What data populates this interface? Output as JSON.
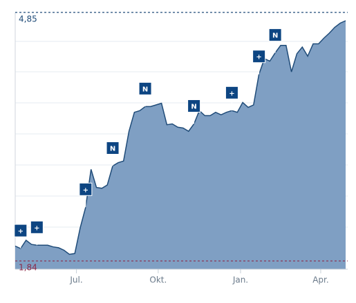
{
  "chart_data": {
    "type": "area",
    "x": [
      0,
      1,
      2,
      3,
      4,
      5,
      6,
      7,
      8,
      9,
      10,
      11,
      12,
      13,
      14,
      15,
      16,
      17,
      18,
      19,
      20,
      21,
      22,
      23,
      24,
      25,
      26,
      27,
      28,
      29,
      30,
      31,
      32,
      33,
      34,
      35,
      36,
      37,
      38,
      39,
      40,
      41,
      42,
      43,
      44,
      45,
      46,
      47,
      48,
      49,
      50,
      51,
      52,
      53,
      54,
      55,
      56,
      57,
      58,
      59,
      60,
      61
    ],
    "values": [
      2.02,
      1.99,
      2.09,
      2.04,
      2.03,
      2.03,
      2.03,
      2.01,
      2.0,
      1.97,
      1.92,
      1.93,
      2.24,
      2.49,
      2.95,
      2.73,
      2.72,
      2.76,
      2.99,
      3.03,
      3.05,
      3.41,
      3.64,
      3.66,
      3.71,
      3.71,
      3.73,
      3.75,
      3.49,
      3.5,
      3.46,
      3.45,
      3.41,
      3.5,
      3.66,
      3.6,
      3.6,
      3.64,
      3.61,
      3.64,
      3.66,
      3.64,
      3.76,
      3.7,
      3.73,
      4.1,
      4.29,
      4.26,
      4.36,
      4.45,
      4.45,
      4.13,
      4.35,
      4.43,
      4.32,
      4.47,
      4.47,
      4.54,
      4.6,
      4.67,
      4.72,
      4.75
    ],
    "color": "#7f9fc3",
    "line_color": "#1f4b78",
    "xlim": [
      0,
      61
    ],
    "ylim": [
      1.74,
      4.85
    ],
    "xticks": [
      {
        "value": 11.3,
        "label": "Jul."
      },
      {
        "value": 26.4,
        "label": "Okt."
      },
      {
        "value": 41.6,
        "label": "Jan."
      },
      {
        "value": 56.4,
        "label": "Apr."
      }
    ],
    "reference_lines": [
      {
        "value": 4.85,
        "label": "4,85",
        "color": "#1f4b78"
      },
      {
        "value": 1.84,
        "label": "1,84",
        "color": "#8c2a4a"
      }
    ],
    "annotations": [
      {
        "x": 1,
        "label": "+"
      },
      {
        "x": 4,
        "label": "+"
      },
      {
        "x": 13,
        "label": "+"
      },
      {
        "x": 18,
        "label": "N"
      },
      {
        "x": 24,
        "label": "N"
      },
      {
        "x": 33,
        "label": "N"
      },
      {
        "x": 40,
        "label": "+"
      },
      {
        "x": 45,
        "label": "+"
      },
      {
        "x": 48,
        "label": "N"
      }
    ]
  }
}
